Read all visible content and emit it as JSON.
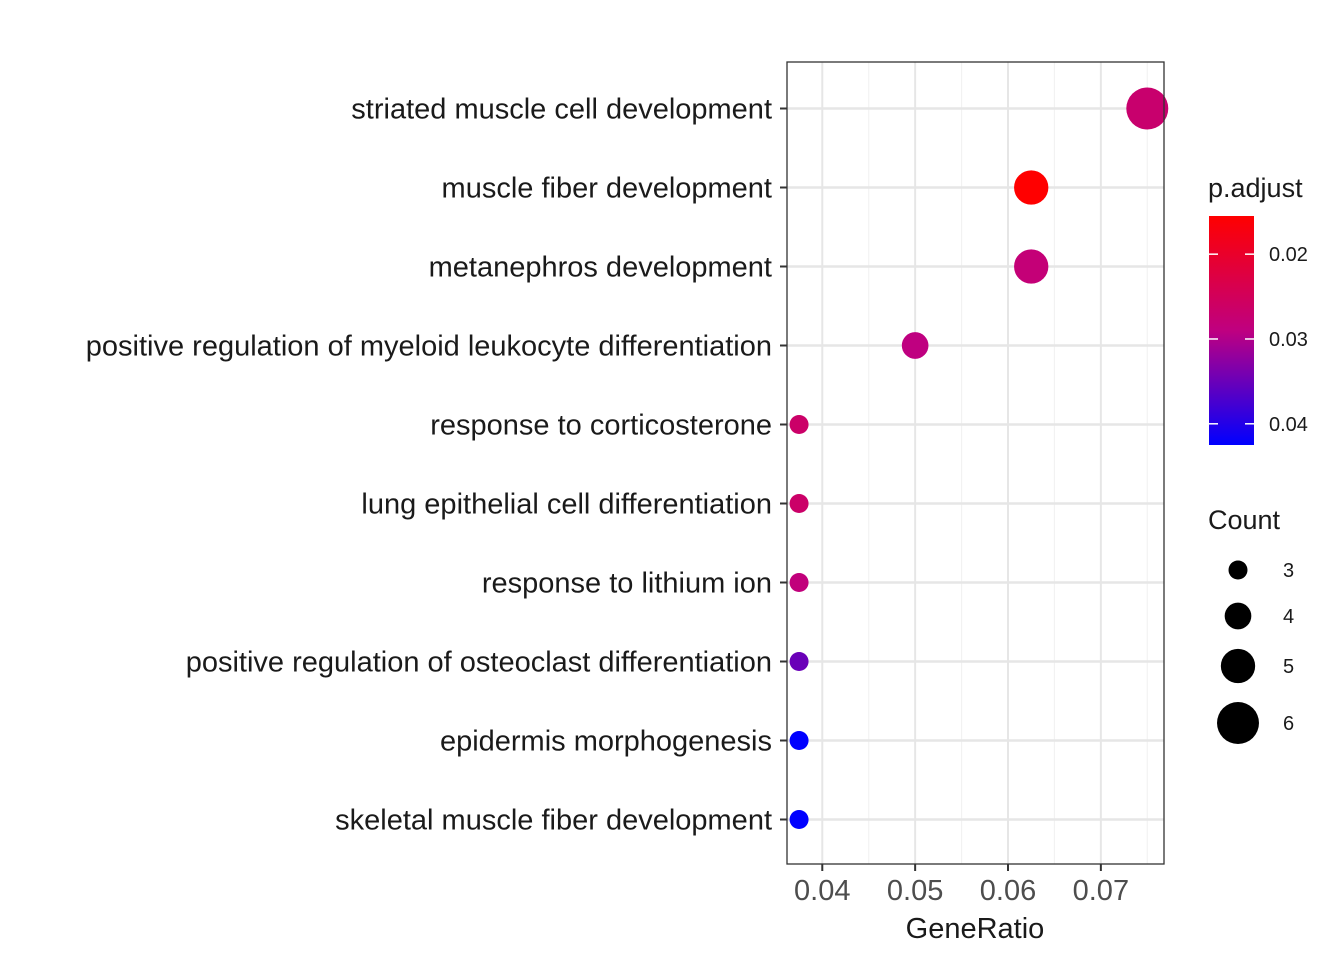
{
  "chart_data": {
    "type": "scatter",
    "xlabel": "GeneRatio",
    "ylabel": "",
    "xlim": [
      0.0362,
      0.0768
    ],
    "x_ticks": [
      0.04,
      0.05,
      0.06,
      0.07
    ],
    "x_tick_labels": [
      "0.04",
      "0.05",
      "0.06",
      "0.07"
    ],
    "grid": true,
    "categories": [
      "striated muscle cell development",
      "muscle fiber development",
      "metanephros development",
      "positive regulation of myeloid leukocyte differentiation",
      "response to corticosterone",
      "lung epithelial cell differentiation",
      "response to lithium ion",
      "positive regulation of osteoclast differentiation",
      "epidermis morphogenesis",
      "skeletal muscle fiber development"
    ],
    "points": [
      {
        "category": "striated muscle cell development",
        "gene_ratio": 0.075,
        "count": 6,
        "p_adjust": 0.027
      },
      {
        "category": "muscle fiber development",
        "gene_ratio": 0.0625,
        "count": 5,
        "p_adjust": 0.0155
      },
      {
        "category": "metanephros development",
        "gene_ratio": 0.0625,
        "count": 5,
        "p_adjust": 0.028
      },
      {
        "category": "positive regulation of myeloid leukocyte differentiation",
        "gene_ratio": 0.05,
        "count": 4,
        "p_adjust": 0.029
      },
      {
        "category": "response to corticosterone",
        "gene_ratio": 0.0375,
        "count": 3,
        "p_adjust": 0.0265
      },
      {
        "category": "lung epithelial cell differentiation",
        "gene_ratio": 0.0375,
        "count": 3,
        "p_adjust": 0.0265
      },
      {
        "category": "response to lithium ion",
        "gene_ratio": 0.0375,
        "count": 3,
        "p_adjust": 0.0285
      },
      {
        "category": "positive regulation of osteoclast differentiation",
        "gene_ratio": 0.0375,
        "count": 3,
        "p_adjust": 0.035
      },
      {
        "category": "epidermis morphogenesis",
        "gene_ratio": 0.0375,
        "count": 3,
        "p_adjust": 0.0425
      },
      {
        "category": "skeletal muscle fiber development",
        "gene_ratio": 0.0375,
        "count": 3,
        "p_adjust": 0.0425
      }
    ],
    "color_legend": {
      "title": "p.adjust",
      "range": [
        0.0155,
        0.0425
      ],
      "low_color": "#ff0000",
      "high_color": "#0000ff",
      "ticks": [
        0.02,
        0.03,
        0.04
      ],
      "tick_labels": [
        "0.02",
        "0.03",
        "0.04"
      ]
    },
    "size_legend": {
      "title": "Count",
      "values": [
        3,
        4,
        5,
        6
      ],
      "labels": [
        "3",
        "4",
        "5",
        "6"
      ]
    }
  }
}
